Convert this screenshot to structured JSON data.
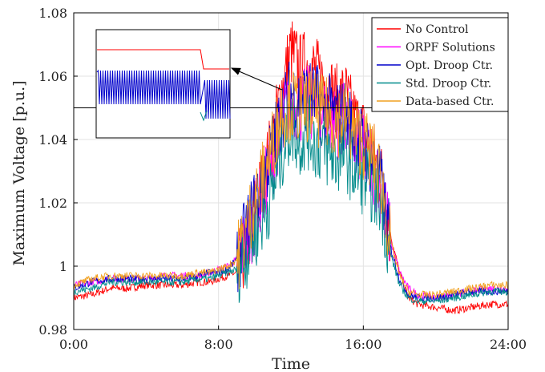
{
  "chart_data": {
    "type": "line",
    "xlabel": "Time",
    "ylabel": "Maximum Voltage [p.u.]",
    "x_ticks": [
      "0:00",
      "8:00",
      "16:00",
      "24:00"
    ],
    "x_tick_hours": [
      0,
      8,
      16,
      24
    ],
    "xlim": [
      0,
      24
    ],
    "ylim": [
      0.98,
      1.08
    ],
    "y_ticks": [
      "0.98",
      "1",
      "1.02",
      "1.04",
      "1.06",
      "1.08"
    ],
    "y_tick_values": [
      0.98,
      1.0,
      1.02,
      1.04,
      1.06,
      1.08
    ],
    "grid": true,
    "legend_position": "top-right",
    "reference_line": 1.05,
    "x": [
      0,
      1,
      2,
      3,
      4,
      5,
      6,
      7,
      7.5,
      8,
      8.5,
      9,
      9.5,
      10,
      10.5,
      11,
      11.5,
      12,
      12.5,
      13,
      13.5,
      14,
      14.5,
      15,
      15.5,
      16,
      16.5,
      17,
      17.5,
      18,
      18.5,
      19,
      20,
      21,
      22,
      23,
      24
    ],
    "series": [
      {
        "name": "No Control",
        "color": "#ff0000",
        "values": [
          0.99,
          0.991,
          0.993,
          0.993,
          0.994,
          0.994,
          0.994,
          0.995,
          0.995,
          0.996,
          0.997,
          0.998,
          1.005,
          1.018,
          1.028,
          1.04,
          1.056,
          1.068,
          1.062,
          1.064,
          1.06,
          1.058,
          1.052,
          1.054,
          1.046,
          1.042,
          1.036,
          1.028,
          1.01,
          0.998,
          0.99,
          0.988,
          0.987,
          0.986,
          0.987,
          0.988,
          0.988
        ]
      },
      {
        "name": "ORPF Solutions",
        "color": "#ff00ff",
        "values": [
          0.994,
          0.995,
          0.996,
          0.996,
          0.996,
          0.997,
          0.997,
          0.997,
          0.998,
          0.999,
          1.0,
          1.002,
          1.008,
          1.015,
          1.024,
          1.034,
          1.046,
          1.052,
          1.05,
          1.052,
          1.049,
          1.047,
          1.045,
          1.047,
          1.04,
          1.036,
          1.032,
          1.024,
          1.008,
          0.998,
          0.993,
          0.991,
          0.99,
          0.991,
          0.992,
          0.993,
          0.993
        ]
      },
      {
        "name": "Opt. Droop Ctr.",
        "color": "#0000cc",
        "values": [
          0.993,
          0.995,
          0.996,
          0.996,
          0.996,
          0.996,
          0.996,
          0.997,
          0.998,
          0.998,
          0.999,
          1.002,
          1.01,
          1.02,
          1.028,
          1.038,
          1.048,
          1.055,
          1.053,
          1.054,
          1.052,
          1.05,
          1.047,
          1.048,
          1.042,
          1.038,
          1.033,
          1.025,
          1.006,
          0.996,
          0.991,
          0.99,
          0.99,
          0.991,
          0.992,
          0.992,
          0.992
        ]
      },
      {
        "name": "Std. Droop Ctr.",
        "color": "#008b8b",
        "values": [
          0.992,
          0.993,
          0.995,
          0.995,
          0.995,
          0.995,
          0.995,
          0.996,
          0.996,
          0.997,
          0.998,
          0.999,
          1.004,
          1.01,
          1.016,
          1.024,
          1.036,
          1.044,
          1.04,
          1.042,
          1.038,
          1.036,
          1.034,
          1.036,
          1.03,
          1.028,
          1.025,
          1.02,
          1.004,
          0.994,
          0.99,
          0.989,
          0.989,
          0.99,
          0.991,
          0.992,
          0.992
        ]
      },
      {
        "name": "Data-based Ctr.",
        "color": "#f0a020",
        "values": [
          0.994,
          0.996,
          0.997,
          0.997,
          0.997,
          0.997,
          0.997,
          0.998,
          0.998,
          0.999,
          1.0,
          1.002,
          1.011,
          1.021,
          1.029,
          1.039,
          1.049,
          1.051,
          1.05,
          1.051,
          1.049,
          1.048,
          1.046,
          1.047,
          1.042,
          1.039,
          1.035,
          1.027,
          1.008,
          0.997,
          0.992,
          0.991,
          0.991,
          0.992,
          0.993,
          0.994,
          0.994
        ]
      }
    ],
    "inset": {
      "description_hidden": true,
      "series_levels": {
        "No Control": "high",
        "Opt. Droop Ctr.": "oscillating"
      }
    }
  }
}
